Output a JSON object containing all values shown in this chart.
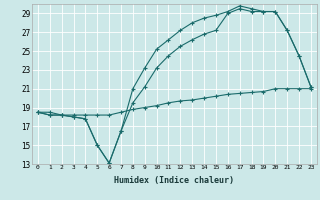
{
  "title": "",
  "xlabel": "Humidex (Indice chaleur)",
  "background_color": "#cce8e8",
  "line_color": "#1a6b6b",
  "grid_color": "#ffffff",
  "xlim": [
    -0.5,
    23.5
  ],
  "ylim": [
    13,
    30
  ],
  "yticks": [
    13,
    15,
    17,
    19,
    21,
    23,
    25,
    27,
    29
  ],
  "xticks": [
    0,
    1,
    2,
    3,
    4,
    5,
    6,
    7,
    8,
    9,
    10,
    11,
    12,
    13,
    14,
    15,
    16,
    17,
    18,
    19,
    20,
    21,
    22,
    23
  ],
  "line1_x": [
    0,
    1,
    2,
    3,
    4,
    5,
    6,
    7,
    8,
    9,
    10,
    11,
    12,
    13,
    14,
    15,
    16,
    17,
    18,
    19,
    20,
    21,
    22,
    23
  ],
  "line1_y": [
    18.5,
    18.5,
    18.2,
    18.2,
    18.2,
    18.2,
    18.2,
    18.5,
    18.8,
    19.0,
    19.2,
    19.5,
    19.7,
    19.8,
    20.0,
    20.2,
    20.4,
    20.5,
    20.6,
    20.7,
    21.0,
    21.0,
    21.0,
    21.0
  ],
  "line2_x": [
    0,
    1,
    2,
    3,
    4,
    5,
    6,
    7,
    8,
    9,
    10,
    11,
    12,
    13,
    14,
    15,
    16,
    17,
    18,
    19,
    20,
    21,
    22,
    23
  ],
  "line2_y": [
    18.5,
    18.2,
    18.2,
    18.0,
    17.8,
    15.0,
    13.1,
    16.5,
    19.5,
    21.2,
    23.2,
    24.5,
    25.5,
    26.2,
    26.8,
    27.2,
    29.0,
    29.5,
    29.2,
    29.2,
    29.2,
    27.2,
    24.5,
    21.2
  ],
  "line3_x": [
    0,
    1,
    2,
    3,
    4,
    5,
    6,
    7,
    8,
    9,
    10,
    11,
    12,
    13,
    14,
    15,
    16,
    17,
    18,
    19,
    20,
    21,
    22,
    23
  ],
  "line3_y": [
    18.5,
    18.2,
    18.2,
    18.0,
    17.8,
    15.0,
    13.1,
    16.5,
    21.0,
    23.2,
    25.2,
    26.2,
    27.2,
    28.0,
    28.5,
    28.8,
    29.2,
    29.8,
    29.5,
    29.2,
    29.2,
    27.2,
    24.5,
    21.2
  ]
}
